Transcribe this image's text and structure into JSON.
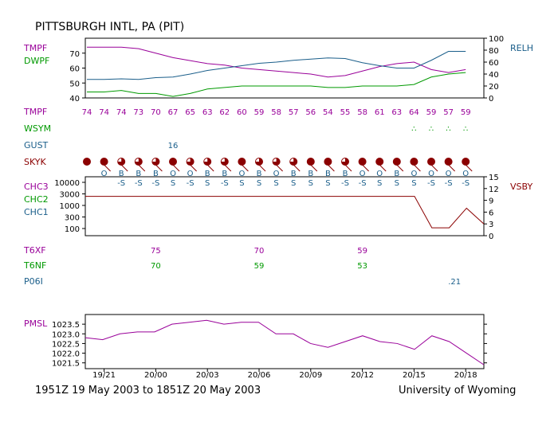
{
  "header": {
    "title": "PITTSBURGH INTL, PA (PIT)"
  },
  "footer": {
    "range": "1951Z 19 May 2003 to 1851Z 20 May 2003",
    "source": "University of Wyoming"
  },
  "colors": {
    "tmp": "#990099",
    "dwp": "#009900",
    "rh": "#1a5e8a",
    "dark": "#8b0000",
    "green": "#009900"
  },
  "row_labels": {
    "tmpf": "TMPF",
    "dwpf": "DWPF",
    "relh": "RELH",
    "wsym": "WSYM",
    "gust": "GUST",
    "skyk": "SKYK",
    "chc3": "CHC3",
    "chc2": "CHC2",
    "chc1": "CHC1",
    "vsby": "VSBY",
    "t6xf": "T6XF",
    "t6nf": "T6NF",
    "p06i": "P06I",
    "pmsl": "PMSL"
  },
  "tmpf_values": [
    "74",
    "74",
    "74",
    "73",
    "70",
    "67",
    "65",
    "63",
    "62",
    "60",
    "59",
    "58",
    "57",
    "56",
    "54",
    "55",
    "58",
    "61",
    "63",
    "64",
    "59",
    "57",
    "59"
  ],
  "tmpf_row_extra": [
    "",
    "59"
  ],
  "wsym": [
    {
      "index": 19,
      "glyph": "∴"
    },
    {
      "index": 20,
      "glyph": "∴"
    },
    {
      "index": 21,
      "glyph": "∴"
    },
    {
      "index": 22,
      "glyph": "∴"
    }
  ],
  "gust": [
    {
      "index": 5,
      "value": "16"
    }
  ],
  "sky_cover": [
    "ovc",
    "ovc",
    "bkn",
    "bkn",
    "bkn",
    "ovc",
    "bkn",
    "bkn",
    "bkn",
    "ovc",
    "bkn",
    "bkn",
    "bkn",
    "ovc",
    "ovc",
    "bkn",
    "ovc",
    "ovc",
    "ovc",
    "ovc",
    "ovc",
    "ovc",
    "ovc"
  ],
  "barbs": [
    {
      "index": 1,
      "label": "O",
      "sub": ""
    },
    {
      "index": 2,
      "label": "B",
      "sub": "-S"
    },
    {
      "index": 3,
      "label": "B",
      "sub": "-S"
    },
    {
      "index": 4,
      "label": "B",
      "sub": "-S"
    },
    {
      "index": 5,
      "label": "O",
      "sub": "S"
    },
    {
      "index": 6,
      "label": "O",
      "sub": "-S"
    },
    {
      "index": 7,
      "label": "B",
      "sub": "S"
    },
    {
      "index": 8,
      "label": "B",
      "sub": "-S"
    },
    {
      "index": 9,
      "label": "O",
      "sub": "S"
    },
    {
      "index": 10,
      "label": "B",
      "sub": "S"
    },
    {
      "index": 11,
      "label": "O",
      "sub": "S"
    },
    {
      "index": 12,
      "label": "B",
      "sub": "S"
    },
    {
      "index": 13,
      "label": "B",
      "sub": "S"
    },
    {
      "index": 14,
      "label": "B",
      "sub": "S"
    },
    {
      "index": 15,
      "label": "B",
      "sub": "-S"
    },
    {
      "index": 16,
      "label": "O",
      "sub": "-S"
    },
    {
      "index": 17,
      "label": "O",
      "sub": "S"
    },
    {
      "index": 18,
      "label": "B",
      "sub": "S"
    },
    {
      "index": 19,
      "label": "O",
      "sub": "S"
    },
    {
      "index": 20,
      "label": "O",
      "sub": "-S"
    },
    {
      "index": 21,
      "label": "O",
      "sub": "-S"
    },
    {
      "index": 22,
      "label": "O",
      "sub": "-S"
    }
  ],
  "t6xf": [
    {
      "index": 4,
      "value": "75"
    },
    {
      "index": 10,
      "value": "70"
    },
    {
      "index": 16,
      "value": "59"
    }
  ],
  "t6nf": [
    {
      "index": 4,
      "value": "70"
    },
    {
      "index": 10,
      "value": "59"
    },
    {
      "index": 16,
      "value": "53"
    }
  ],
  "p06i": [
    {
      "index": 22,
      "value": ".21"
    }
  ],
  "chart_data": [
    {
      "type": "line",
      "title": "",
      "ylabel": "",
      "ylim": [
        40,
        80
      ],
      "y2lim": [
        0,
        100
      ],
      "y_ticks": [
        "40",
        "50",
        "60",
        "70"
      ],
      "y2_ticks": [
        "0",
        "20",
        "40",
        "60",
        "80",
        "100"
      ],
      "grid": false,
      "x": [
        0,
        1,
        2,
        3,
        4,
        5,
        6,
        7,
        8,
        9,
        10,
        11,
        12,
        13,
        14,
        15,
        16,
        17,
        18,
        19,
        20,
        21,
        22
      ],
      "series": [
        {
          "name": "TMPF",
          "axis": "left",
          "values": [
            74,
            74,
            74,
            73,
            70,
            67,
            65,
            63,
            62,
            60,
            59,
            58,
            57,
            56,
            54,
            55,
            58,
            61,
            63,
            64,
            59,
            57,
            59
          ]
        },
        {
          "name": "DWPF",
          "axis": "left",
          "values": [
            44,
            44,
            45,
            43,
            43,
            41,
            43,
            46,
            47,
            48,
            48,
            48,
            48,
            48,
            47,
            47,
            48,
            48,
            48,
            49,
            54,
            56,
            57
          ]
        },
        {
          "name": "RELH",
          "axis": "right",
          "values": [
            31,
            31,
            32,
            31,
            34,
            35,
            40,
            46,
            50,
            54,
            58,
            60,
            63,
            65,
            67,
            66,
            59,
            54,
            50,
            50,
            63,
            78,
            78
          ]
        }
      ]
    },
    {
      "type": "line",
      "ylabel": "VSBY",
      "y2lim": [
        0,
        15
      ],
      "y2_ticks": [
        "0",
        "3",
        "6",
        "9",
        "12",
        "15"
      ],
      "y_ticks": [
        "100",
        "300",
        "1000",
        "3000",
        "10000"
      ],
      "series": [
        {
          "name": "VSBY",
          "axis": "right",
          "values": [
            10,
            10,
            10,
            10,
            10,
            10,
            10,
            10,
            10,
            10,
            10,
            10,
            10,
            10,
            10,
            10,
            10,
            10,
            10,
            10,
            2,
            2,
            7,
            3
          ]
        }
      ]
    },
    {
      "type": "line",
      "ylabel": "PMSL",
      "ylim": [
        1021.2,
        1024.0
      ],
      "y_ticks": [
        "1021.5",
        "1022.0",
        "1022.5",
        "1023.0",
        "1023.5"
      ],
      "x_ticks": [
        "19/21",
        "20/00",
        "20/03",
        "20/06",
        "20/09",
        "20/12",
        "20/15",
        "20/18"
      ],
      "x_tick_index": [
        1,
        4,
        7,
        10,
        13,
        16,
        19,
        22
      ],
      "series": [
        {
          "name": "PMSL",
          "values": [
            1022.8,
            1022.7,
            1023.0,
            1023.1,
            1023.1,
            1023.5,
            1023.6,
            1023.7,
            1023.5,
            1023.6,
            1023.6,
            1023.0,
            1023.0,
            1022.5,
            1022.3,
            1022.6,
            1022.9,
            1022.6,
            1022.5,
            1022.2,
            1022.9,
            1022.6,
            1022.0,
            1021.4
          ]
        }
      ]
    }
  ]
}
